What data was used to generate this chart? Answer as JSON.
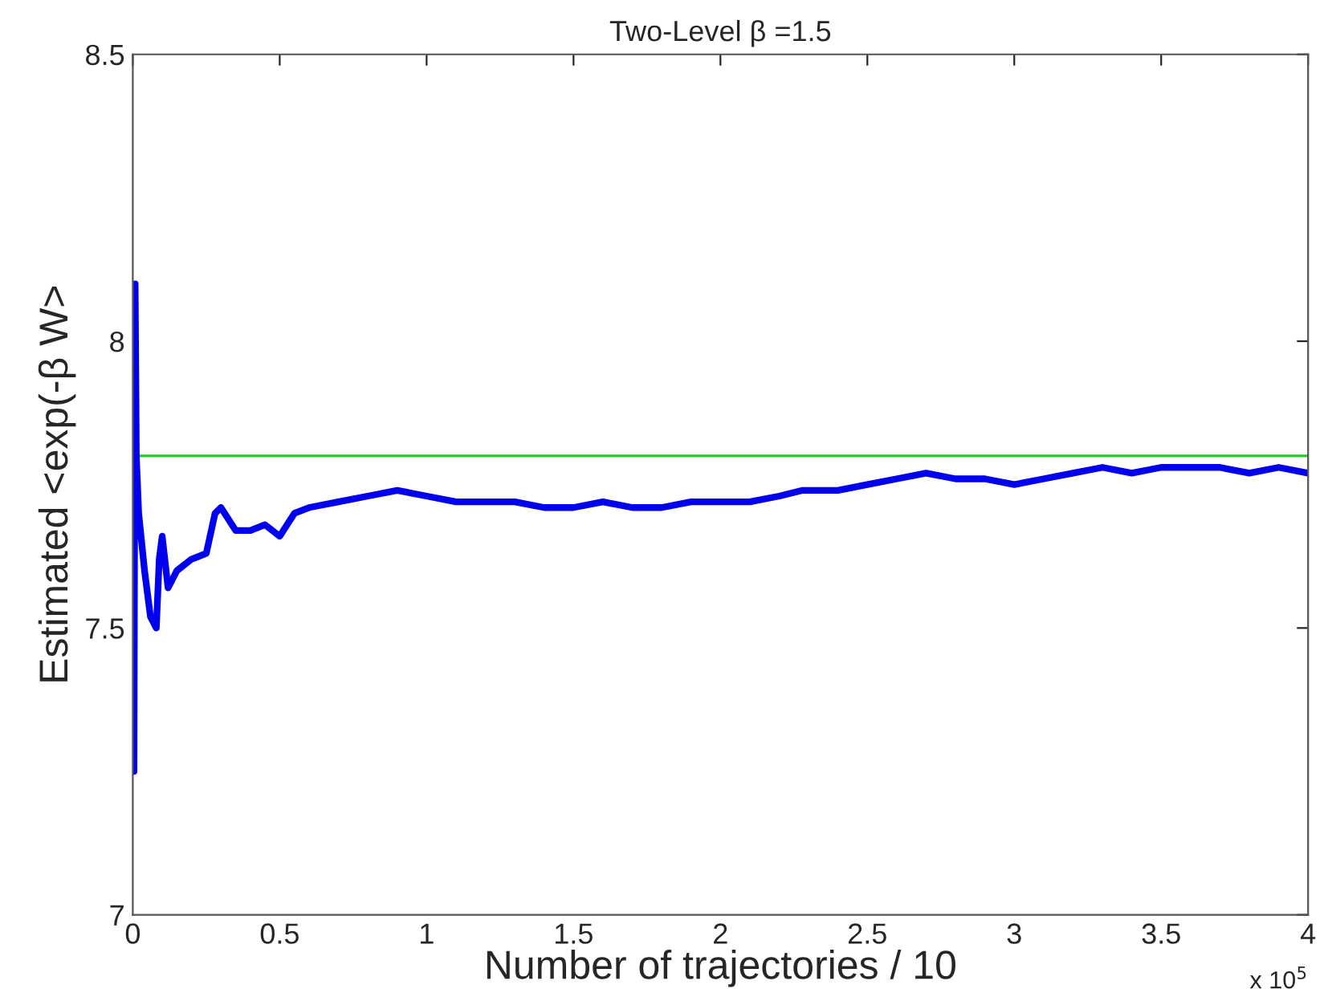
{
  "chart_data": {
    "type": "line",
    "title": "Two-Level β =1.5",
    "xlabel": "Number of trajectories / 10",
    "ylabel": "Estimated <exp(-β W>",
    "annotations": [
      "x 10$^{5}$"
    ],
    "xlim": [
      0,
      4
    ],
    "xticks": [
      0,
      0.5,
      1,
      1.5,
      2,
      2.5,
      3,
      3.5,
      4
    ],
    "ylim": [
      7,
      8.5
    ],
    "yticks": [
      7,
      7.5,
      8,
      8.5
    ],
    "grid": false,
    "legend": false,
    "series": [
      {
        "color": "#0000ee",
        "x": [
          0,
          0.004,
          0.008,
          0.012,
          0.02,
          0.04,
          0.06,
          0.08,
          0.09,
          0.1,
          0.12,
          0.15,
          0.2,
          0.25,
          0.28,
          0.3,
          0.35,
          0.4,
          0.45,
          0.5,
          0.55,
          0.6,
          0.7,
          0.8,
          0.9,
          1.0,
          1.1,
          1.2,
          1.3,
          1.4,
          1.5,
          1.6,
          1.7,
          1.8,
          1.9,
          2.0,
          2.1,
          2.2,
          2.28,
          2.4,
          2.5,
          2.6,
          2.7,
          2.8,
          2.9,
          3.0,
          3.1,
          3.2,
          3.3,
          3.4,
          3.5,
          3.6,
          3.7,
          3.8,
          3.9,
          4.0
        ],
        "values": [
          7.3,
          7.25,
          8.1,
          7.8,
          7.7,
          7.6,
          7.52,
          7.5,
          7.62,
          7.66,
          7.57,
          7.6,
          7.62,
          7.63,
          7.7,
          7.71,
          7.67,
          7.67,
          7.68,
          7.66,
          7.7,
          7.71,
          7.72,
          7.73,
          7.74,
          7.73,
          7.72,
          7.72,
          7.72,
          7.71,
          7.71,
          7.72,
          7.71,
          7.71,
          7.72,
          7.72,
          7.72,
          7.73,
          7.74,
          7.74,
          7.75,
          7.76,
          7.77,
          7.76,
          7.76,
          7.75,
          7.76,
          7.77,
          7.78,
          7.77,
          7.78,
          7.78,
          7.78,
          7.77,
          7.78,
          7.77
        ]
      }
    ],
    "ref_lines": [
      {
        "axis": "y",
        "value": 7.8,
        "color": "#22cc22"
      }
    ]
  }
}
